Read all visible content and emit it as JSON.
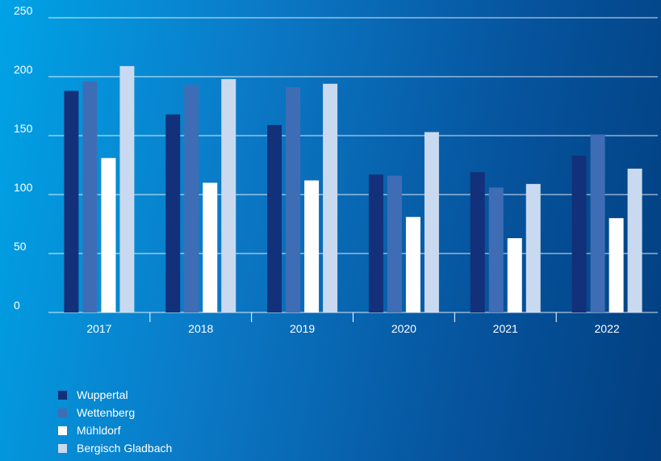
{
  "chart_data": {
    "type": "bar",
    "categories": [
      "2017",
      "2018",
      "2019",
      "2020",
      "2021",
      "2022"
    ],
    "series": [
      {
        "name": "Wuppertal",
        "color": "#12317a",
        "values": [
          188,
          168,
          159,
          117,
          119,
          133
        ]
      },
      {
        "name": "Wettenberg",
        "color": "#3f6db5",
        "values": [
          196,
          193,
          191,
          116,
          106,
          151
        ]
      },
      {
        "name": "Mühldorf",
        "color": "#ffffff",
        "values": [
          131,
          110,
          112,
          81,
          63,
          80
        ]
      },
      {
        "name": "Bergisch Gladbach",
        "color": "#c9daf0",
        "values": [
          209,
          198,
          194,
          153,
          109,
          122
        ]
      }
    ],
    "yticks": [
      "0",
      "50",
      "100",
      "150",
      "200",
      "250"
    ],
    "ylim": [
      0,
      250
    ],
    "grid": true,
    "legend_position": "bottom-left",
    "title": "",
    "xlabel": "",
    "ylabel": ""
  }
}
